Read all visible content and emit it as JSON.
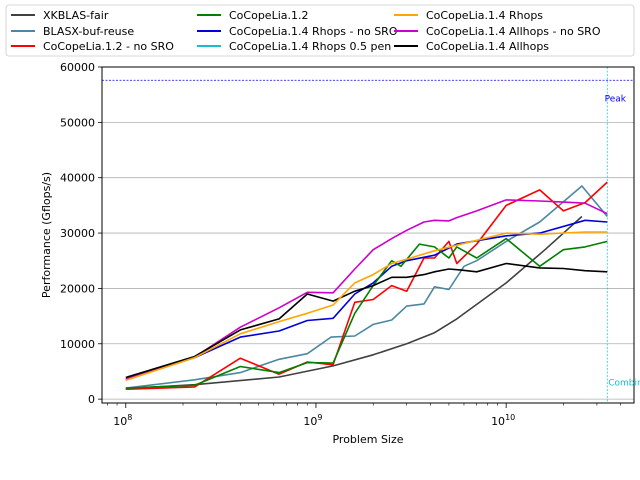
{
  "chart_data": {
    "type": "line",
    "title": "",
    "xlabel": "Problem Size",
    "ylabel": "Performance (Gflops/s)",
    "xscale": "log",
    "xlim": [
      75000000,
      47000000000
    ],
    "ylim": [
      -700,
      60000
    ],
    "x_ticks": [
      {
        "value": 100000000,
        "base": "10",
        "exp": "8"
      },
      {
        "value": 1000000000,
        "base": "10",
        "exp": "9"
      },
      {
        "value": 10000000000,
        "base": "10",
        "exp": "10"
      }
    ],
    "y_ticks": [
      {
        "value": 0,
        "label": "0"
      },
      {
        "value": 10000,
        "label": "10000"
      },
      {
        "value": 20000,
        "label": "20000"
      },
      {
        "value": 30000,
        "label": "30000"
      },
      {
        "value": 40000,
        "label": "40000"
      },
      {
        "value": 50000,
        "label": "50000"
      },
      {
        "value": 60000,
        "label": "60000"
      }
    ],
    "grid": "horizontal",
    "legend_position": "top (outside, above plot)",
    "annotations": {
      "peak": {
        "label": "Peak",
        "value": 57600,
        "color": "#0000ff"
      },
      "combined": {
        "label": "Combin",
        "x": 34000000000,
        "color": "#17becf"
      }
    },
    "series": [
      {
        "name": "XKBLAS-fair",
        "color": "#404040",
        "x": [
          100000000,
          230000000,
          640000000,
          1230000000,
          2000000000,
          3000000000,
          4200000000,
          5500000000,
          10000000000,
          16000000000,
          25000000000
        ],
        "y": [
          1900,
          2600,
          4000,
          6000,
          8000,
          10000,
          12000,
          14500,
          21000,
          27000,
          33000
        ]
      },
      {
        "name": "BLASX-buf-reuse",
        "color": "#4a88a0",
        "x": [
          100000000,
          230000000,
          400000000,
          640000000,
          900000000,
          1200000000,
          1600000000,
          2000000000,
          2500000000,
          3000000000,
          3700000000,
          4200000000,
          5000000000,
          6000000000,
          7000000000,
          10000000000,
          15000000000,
          25000000000,
          34000000000
        ],
        "y": [
          2000,
          3500,
          4800,
          7200,
          8200,
          11200,
          11400,
          13500,
          14300,
          16800,
          17200,
          20300,
          19800,
          24000,
          25000,
          28500,
          32000,
          38500,
          33000
        ]
      },
      {
        "name": "CoCopeLia.1.2 - no SRO",
        "color": "#ff0000",
        "x": [
          100000000,
          230000000,
          400000000,
          640000000,
          900000000,
          1230000000,
          1600000000,
          2000000000,
          2500000000,
          3000000000,
          3700000000,
          4200000000,
          5000000000,
          5500000000,
          7000000000,
          10000000000,
          15000000000,
          20000000000,
          26000000000,
          34000000000
        ],
        "y": [
          1800,
          2200,
          7400,
          4500,
          6700,
          6200,
          17500,
          18000,
          20500,
          19500,
          25500,
          25500,
          28500,
          24500,
          28000,
          35000,
          37800,
          34000,
          35500,
          39200
        ]
      },
      {
        "name": "CoCopeLia.1.4 Rhops - no SRO",
        "color": "#0000dd",
        "x": [
          100000000,
          230000000,
          400000000,
          640000000,
          900000000,
          1230000000,
          1600000000,
          2000000000,
          2500000000,
          3000000000,
          4200000000,
          5500000000,
          10000000000,
          15000000000,
          26000000000,
          34000000000
        ],
        "y": [
          3500,
          7500,
          11200,
          12300,
          14200,
          14600,
          19000,
          21000,
          24000,
          25000,
          26000,
          28000,
          29500,
          30000,
          32300,
          32000
        ]
      },
      {
        "name": "CoCopeLia.1.4 Allhops - no SRO",
        "color": "#cc00cc",
        "x": [
          100000000,
          230000000,
          400000000,
          640000000,
          900000000,
          1230000000,
          1600000000,
          2000000000,
          2500000000,
          3000000000,
          3700000000,
          4200000000,
          5000000000,
          5500000000,
          7000000000,
          10000000000,
          15000000000,
          20000000000,
          26000000000,
          34000000000
        ],
        "y": [
          3700,
          7600,
          13000,
          16500,
          19300,
          19200,
          23500,
          27000,
          29000,
          30500,
          32000,
          32300,
          32200,
          32800,
          34000,
          36000,
          35800,
          35600,
          35400,
          33500
        ]
      },
      {
        "name": "CoCopeLia.1.2",
        "color": "#008000",
        "x": [
          100000000,
          230000000,
          400000000,
          640000000,
          900000000,
          1230000000,
          1600000000,
          2000000000,
          2500000000,
          2800000000,
          3500000000,
          4200000000,
          5000000000,
          5500000000,
          7000000000,
          10000000000,
          15000000000,
          20000000000,
          26000000000,
          34000000000
        ],
        "y": [
          2000,
          2500,
          5900,
          4800,
          6600,
          6500,
          15500,
          20500,
          25000,
          24000,
          28000,
          27500,
          25500,
          27500,
          25500,
          29000,
          24000,
          27000,
          27500,
          28500
        ]
      },
      {
        "name": "CoCopeLia.1.4 Rhops 0.5 pen",
        "color": "#17becf",
        "x": [],
        "y": []
      },
      {
        "name": "CoCopeLia.1.4 Allhops",
        "color": "#000000",
        "x": [
          100000000,
          230000000,
          400000000,
          640000000,
          900000000,
          1230000000,
          1600000000,
          2000000000,
          2500000000,
          3000000000,
          3700000000,
          4200000000,
          5000000000,
          5800000000,
          7000000000,
          10000000000,
          15000000000,
          20000000000,
          26000000000,
          34000000000
        ],
        "y": [
          3900,
          7700,
          12500,
          14500,
          19000,
          17700,
          19500,
          20500,
          22000,
          22000,
          22500,
          23000,
          23500,
          23300,
          23000,
          24500,
          23700,
          23600,
          23200,
          23000
        ]
      },
      {
        "name": "CoCopeLia.1.4 Rhops",
        "color": "#ffa500",
        "x": [
          100000000,
          230000000,
          400000000,
          640000000,
          900000000,
          1230000000,
          1600000000,
          2000000000,
          2500000000,
          3000000000,
          4200000000,
          5500000000,
          10000000000,
          15000000000,
          26000000000,
          34000000000
        ],
        "y": [
          3400,
          7500,
          11800,
          14000,
          15500,
          17000,
          21000,
          22500,
          24500,
          25300,
          26800,
          27800,
          30000,
          29800,
          30200,
          30200
        ]
      }
    ],
    "legend_order": [
      "XKBLAS-fair",
      "BLASX-buf-reuse",
      "CoCopeLia.1.2 - no SRO",
      "CoCopeLia.1.2",
      "CoCopeLia.1.4 Rhops - no SRO",
      "CoCopeLia.1.4 Rhops 0.5 pen",
      "CoCopeLia.1.4 Rhops",
      "CoCopeLia.1.4 Allhops - no SRO",
      "CoCopeLia.1.4 Allhops"
    ]
  }
}
